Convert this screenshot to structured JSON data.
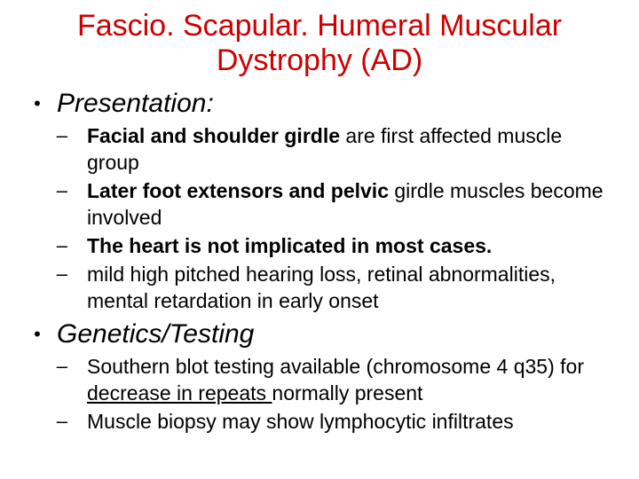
{
  "colors": {
    "title": "#cc0000",
    "text": "#000000",
    "background": "#ffffff"
  },
  "typography": {
    "family": "Comic Sans MS",
    "title_fontsize": 34,
    "section_fontsize": 30,
    "body_fontsize": 23
  },
  "title_line1": "Fascio. Scapular. Humeral Muscular",
  "title_line2": "Dystrophy (AD)",
  "bullet_l1": "•",
  "bullet_l2": "–",
  "section1": "Presentation:",
  "s1": {
    "i1_bold": "Facial and shoulder girdle ",
    "i1_rest": "are first affected muscle group",
    "i2_bold": "Later foot extensors and pelvic ",
    "i2_rest": "girdle muscles become involved",
    "i3_bold": "The heart is not implicated in most cases.",
    "i4": "mild high pitched hearing loss, retinal abnormalities, mental retardation in early onset"
  },
  "section2": "Genetics/Testing",
  "s2": {
    "i1_a": "Southern blot testing available (chromosome 4 q35) for ",
    "i1_u": "decrease in repeats ",
    "i1_b": "normally present",
    "i2": "Muscle biopsy may show lymphocytic infiltrates"
  }
}
